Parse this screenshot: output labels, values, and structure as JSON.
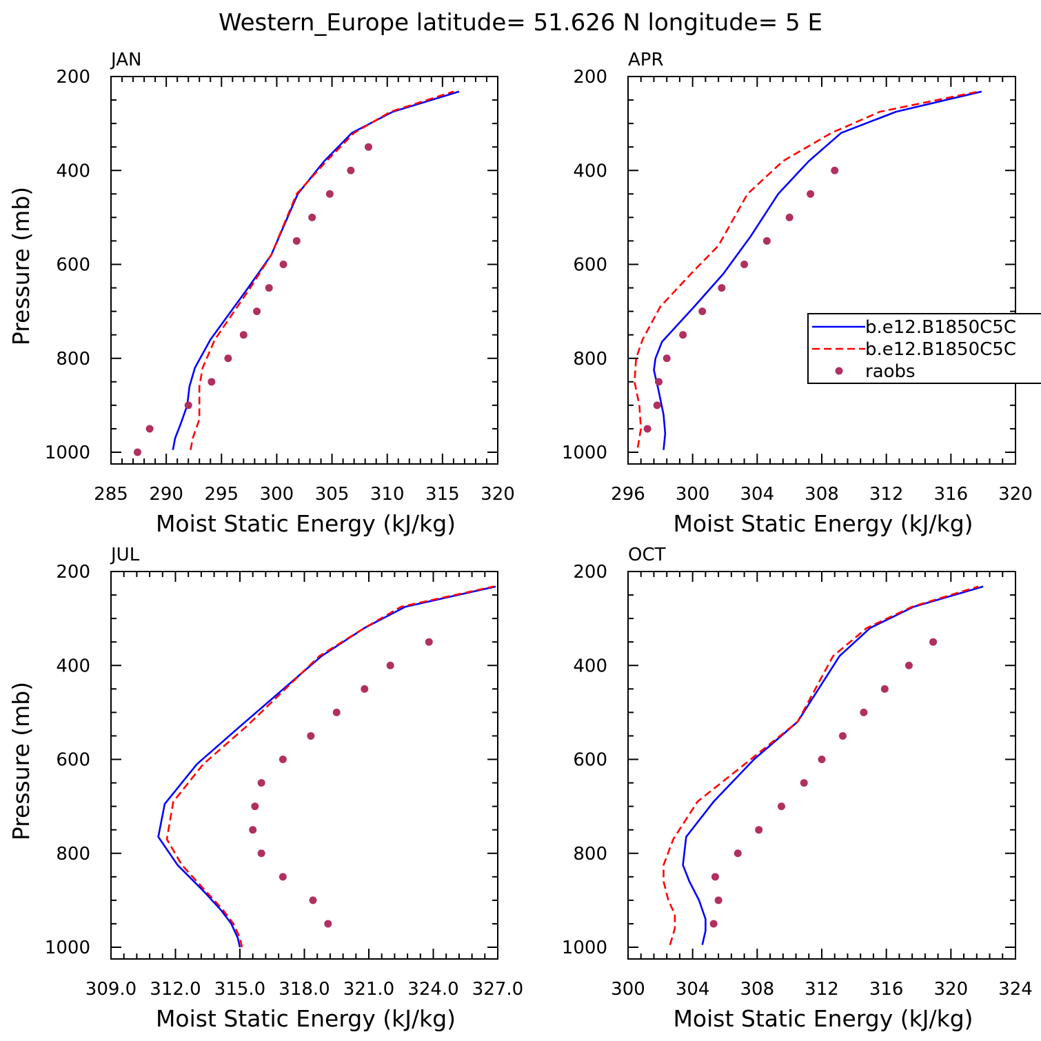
{
  "figure": {
    "title": "Western_Europe  latitude= 51.626 N longitude= 5 E"
  },
  "colors": {
    "model1": "#0000ff",
    "model2": "#ff0000",
    "raobs": "#b03060",
    "axes": "#000000"
  },
  "legend": {
    "panel": "APR",
    "placement": "right, mid-height of APR panel (clipped at figure edge)",
    "entries": [
      {
        "label": "b.e12.B1850C5C",
        "style": "solid",
        "color": "#0000ff"
      },
      {
        "label": "b.e12.B1850C5C",
        "style": "dashed",
        "color": "#ff0000"
      },
      {
        "label": "raobs",
        "style": "marker",
        "color": "#b03060"
      }
    ]
  },
  "chart_data": [
    {
      "type": "line",
      "title": "JAN",
      "xlabel": "Moist Static Energy (kJ/kg)",
      "ylabel": "Pressure (mb)",
      "xlim": [
        285,
        320
      ],
      "ylim": [
        1000,
        200
      ],
      "xticks": [
        285,
        290,
        295,
        300,
        305,
        310,
        315,
        320
      ],
      "xtick_labels": [
        "285",
        "290",
        "295",
        "300",
        "305",
        "310",
        "315",
        "320"
      ],
      "yticks": [
        200,
        400,
        600,
        800,
        1000
      ],
      "ytick_labels": [
        "200",
        "400",
        "600",
        "800",
        "1000"
      ],
      "series": [
        {
          "style": "solid",
          "x": [
            290.6,
            290.8,
            291.3,
            291.9,
            292.1,
            292.6,
            294.0,
            297.4,
            299.5,
            301.9,
            304.3,
            306.8,
            310.5,
            316.5
          ],
          "y": [
            995,
            970,
            940,
            900,
            860,
            820,
            760,
            650,
            580,
            450,
            380,
            320,
            275,
            232
          ]
        },
        {
          "style": "dashed",
          "x": [
            292.2,
            292.4,
            293.0,
            293.0,
            293.0,
            293.3,
            294.4,
            297.6,
            299.5,
            301.8,
            304.5,
            307.0,
            310.3,
            316.0
          ],
          "y": [
            995,
            970,
            930,
            900,
            860,
            820,
            760,
            650,
            580,
            450,
            380,
            320,
            275,
            232
          ]
        },
        {
          "name": "raobs",
          "style": "marker",
          "x": [
            287.4,
            288.5,
            292.0,
            294.1,
            295.6,
            297.0,
            298.2,
            299.3,
            300.6,
            301.8,
            303.2,
            304.8,
            306.7,
            308.3
          ],
          "y": [
            1000,
            950,
            900,
            850,
            800,
            750,
            700,
            650,
            600,
            550,
            500,
            450,
            400,
            350
          ]
        }
      ]
    },
    {
      "type": "line",
      "title": "APR",
      "xlabel": "Moist Static Energy (kJ/kg)",
      "ylabel": "",
      "xlim": [
        296,
        320
      ],
      "ylim": [
        1000,
        200
      ],
      "xticks": [
        296,
        300,
        304,
        308,
        312,
        316,
        320
      ],
      "xtick_labels": [
        "296",
        "300",
        "304",
        "308",
        "312",
        "316",
        "320"
      ],
      "yticks": [
        200,
        400,
        600,
        800,
        1000
      ],
      "ytick_labels": [
        "200",
        "400",
        "600",
        "800",
        "1000"
      ],
      "series": [
        {
          "style": "solid",
          "x": [
            298.2,
            298.3,
            298.2,
            297.9,
            297.6,
            297.7,
            298.1,
            300.1,
            301.9,
            303.6,
            305.3,
            307.2,
            309.2,
            312.6,
            317.9
          ],
          "y": [
            995,
            960,
            920,
            870,
            825,
            800,
            765,
            690,
            620,
            540,
            450,
            380,
            320,
            275,
            232
          ]
        },
        {
          "style": "dashed",
          "x": [
            296.6,
            296.8,
            296.7,
            296.4,
            296.5,
            296.9,
            298.0,
            299.9,
            301.6,
            303.4,
            305.6,
            308.6,
            311.6,
            317.7
          ],
          "y": [
            990,
            950,
            900,
            850,
            800,
            760,
            690,
            620,
            560,
            450,
            380,
            320,
            275,
            232
          ]
        },
        {
          "name": "raobs",
          "style": "marker",
          "x": [
            297.2,
            297.8,
            297.9,
            298.4,
            299.4,
            300.6,
            301.8,
            303.2,
            304.6,
            306.0,
            307.3,
            308.8
          ],
          "y": [
            950,
            900,
            850,
            800,
            750,
            700,
            650,
            600,
            550,
            500,
            450,
            400
          ]
        }
      ]
    },
    {
      "type": "line",
      "title": "JUL",
      "xlabel": "Moist Static Energy (kJ/kg)",
      "ylabel": "Pressure (mb)",
      "xlim": [
        309,
        327
      ],
      "ylim": [
        1000,
        200
      ],
      "xticks": [
        309,
        312,
        315,
        318,
        321,
        324,
        327
      ],
      "xtick_labels": [
        "309.0",
        "312.0",
        "315.0",
        "318.0",
        "321.0",
        "324.0",
        "327.0"
      ],
      "yticks": [
        200,
        400,
        600,
        800,
        1000
      ],
      "ytick_labels": [
        "200",
        "400",
        "600",
        "800",
        "1000"
      ],
      "series": [
        {
          "style": "solid",
          "x": [
            315.0,
            314.9,
            314.6,
            314.1,
            313.3,
            312.1,
            311.2,
            311.5,
            313.0,
            315.0,
            318.8,
            320.8,
            322.7,
            326.9
          ],
          "y": [
            1000,
            980,
            950,
            920,
            880,
            825,
            765,
            695,
            610,
            530,
            380,
            320,
            275,
            232
          ]
        },
        {
          "style": "dashed",
          "x": [
            315.1,
            315.0,
            314.7,
            314.2,
            313.4,
            312.3,
            311.6,
            311.9,
            313.3,
            315.3,
            318.7,
            320.8,
            322.5,
            326.8
          ],
          "y": [
            1000,
            980,
            950,
            920,
            880,
            825,
            770,
            690,
            610,
            530,
            380,
            320,
            275,
            232
          ]
        },
        {
          "name": "raobs",
          "style": "marker",
          "x": [
            319.1,
            318.4,
            317.0,
            316.0,
            315.6,
            315.7,
            316.0,
            317.0,
            318.3,
            319.5,
            320.8,
            322.0,
            323.8
          ],
          "y": [
            950,
            900,
            850,
            800,
            750,
            700,
            650,
            600,
            550,
            500,
            450,
            400,
            350
          ]
        }
      ]
    },
    {
      "type": "line",
      "title": "OCT",
      "xlabel": "Moist Static Energy (kJ/kg)",
      "ylabel": "",
      "xlim": [
        300,
        324
      ],
      "ylim": [
        1000,
        200
      ],
      "xticks": [
        300,
        304,
        308,
        312,
        316,
        320,
        324
      ],
      "xtick_labels": [
        "300",
        "304",
        "308",
        "312",
        "316",
        "320",
        "324"
      ],
      "series": [
        {
          "style": "solid",
          "x": [
            304.6,
            304.8,
            304.8,
            304.4,
            303.8,
            303.4,
            303.6,
            305.3,
            307.8,
            310.5,
            313.1,
            315.0,
            317.7,
            322.0
          ],
          "y": [
            995,
            965,
            940,
            900,
            860,
            825,
            765,
            690,
            600,
            520,
            380,
            320,
            275,
            232
          ]
        },
        {
          "style": "dashed",
          "x": [
            302.6,
            302.9,
            302.9,
            302.5,
            302.2,
            302.2,
            302.8,
            304.3,
            307.6,
            310.5,
            312.7,
            314.8,
            317.6,
            321.7
          ],
          "y": [
            995,
            960,
            930,
            900,
            860,
            825,
            770,
            690,
            600,
            520,
            380,
            320,
            275,
            232
          ]
        },
        {
          "name": "raobs",
          "style": "marker",
          "x": [
            305.3,
            305.6,
            305.4,
            306.8,
            308.1,
            309.5,
            310.9,
            312.0,
            313.3,
            314.6,
            315.9,
            317.4,
            318.9
          ],
          "y": [
            950,
            900,
            850,
            800,
            750,
            700,
            650,
            600,
            550,
            500,
            450,
            400,
            350
          ]
        }
      ],
      "yticks": [
        200,
        400,
        600,
        800,
        1000
      ],
      "ytick_labels": [
        "200",
        "400",
        "600",
        "800",
        "1000"
      ]
    }
  ]
}
